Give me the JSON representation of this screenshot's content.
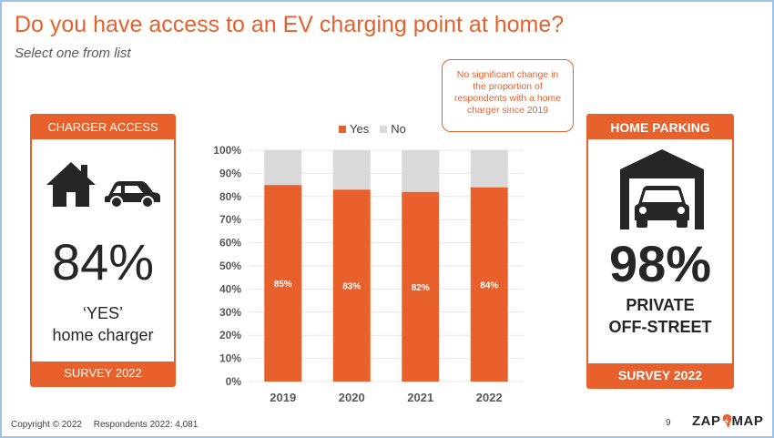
{
  "title": "Do you have access to an EV charging point at home?",
  "subtitle": "Select one from list",
  "callout": "No significant change in the proportion of respondents with a home charger since 2019",
  "left_card": {
    "header": "CHARGER ACCESS",
    "big_value": "84%",
    "line1": "‘YES’",
    "line2": "home charger",
    "footer": "SURVEY 2022",
    "icons": [
      "house-icon",
      "car-icon"
    ]
  },
  "right_card": {
    "header": "HOME PARKING",
    "big_value": "98%",
    "line1": "PRIVATE",
    "line2": "OFF-STREET",
    "footer": "SURVEY 2022",
    "icons": [
      "garage-car-icon"
    ]
  },
  "colors": {
    "accent": "#e8612c",
    "no": "#d9d9d9",
    "text": "#262626"
  },
  "chart_data": {
    "type": "bar",
    "stacked": true,
    "percent": true,
    "categories": [
      "2019",
      "2020",
      "2021",
      "2022"
    ],
    "series": [
      {
        "name": "Yes",
        "values": [
          85,
          83,
          82,
          84
        ],
        "color": "#e8612c",
        "labels": [
          "85%",
          "83%",
          "82%",
          "84%"
        ]
      },
      {
        "name": "No",
        "values": [
          15,
          17,
          18,
          16
        ],
        "color": "#d9d9d9"
      }
    ],
    "yticks": [
      "0%",
      "10%",
      "20%",
      "30%",
      "40%",
      "50%",
      "60%",
      "70%",
      "80%",
      "90%",
      "100%"
    ],
    "ylim": [
      0,
      100
    ],
    "legend": "top",
    "grid": true
  },
  "footer": {
    "copyright": "Copyright © 2022",
    "respondents": "Respondents 2022: 4,081",
    "page": "9",
    "logo_left": "ZAP",
    "logo_right": "MAP"
  }
}
